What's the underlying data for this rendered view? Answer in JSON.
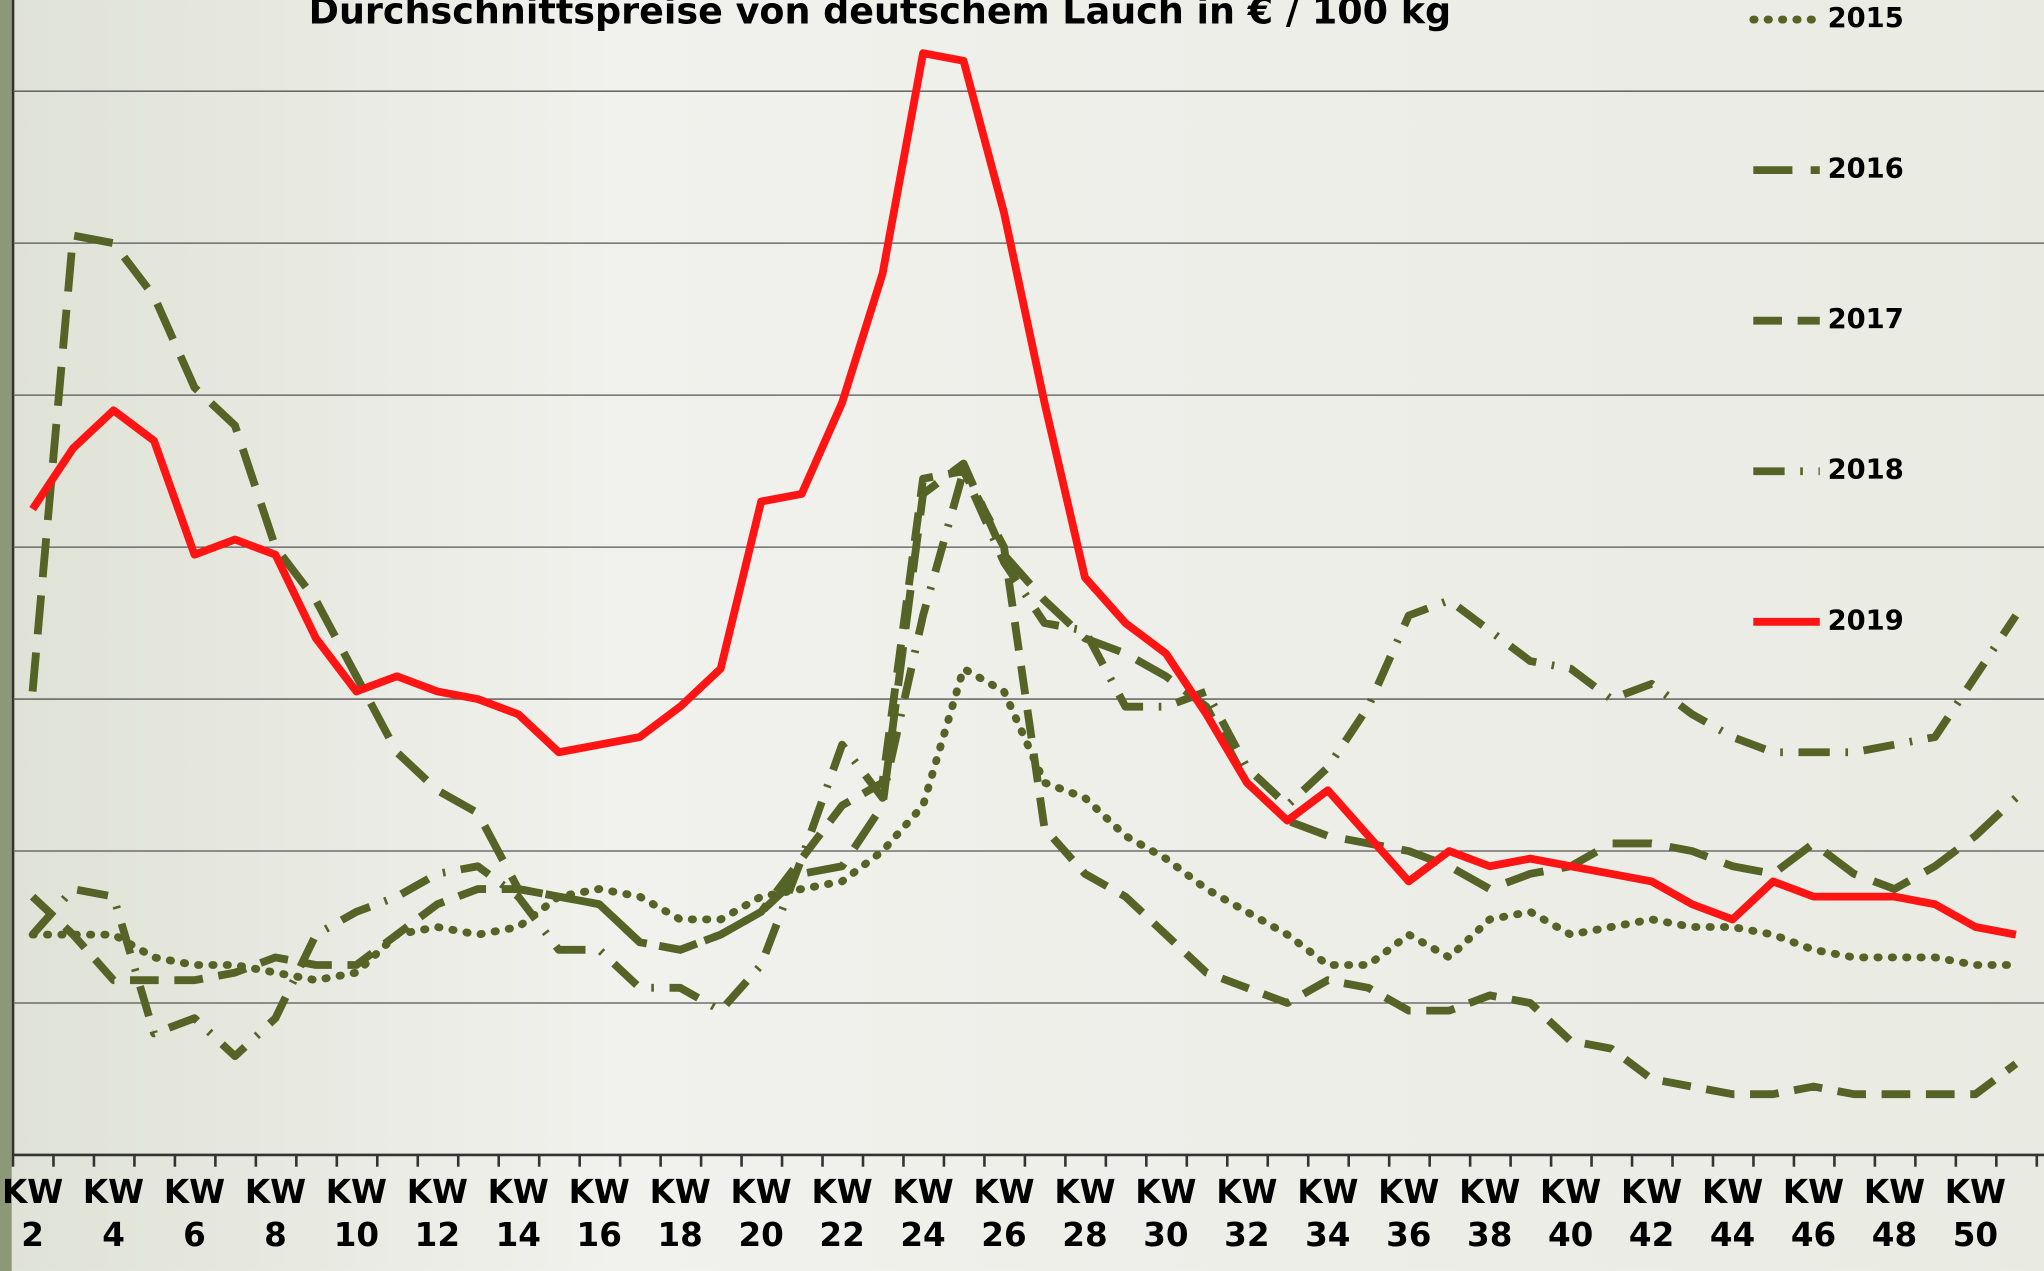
{
  "chart_data": {
    "type": "line",
    "title": "Durchschnittspreise von deutschem Lauch in € / 100 kg",
    "categories": [
      "KW 2",
      null,
      "KW 4",
      null,
      "KW 6",
      null,
      "KW 8",
      null,
      "KW 10",
      null,
      "KW 12",
      null,
      "KW 14",
      null,
      "KW 16",
      null,
      "KW 18",
      null,
      "KW 20",
      null,
      "KW 22",
      null,
      "KW 24",
      null,
      "KW 26",
      null,
      "KW 28",
      null,
      "KW 30",
      null,
      "KW 32",
      null,
      "KW 34",
      null,
      "KW 36",
      null,
      "KW 38",
      null,
      "KW 40",
      null,
      "KW 42",
      null,
      "KW 44",
      null,
      "KW 46",
      null,
      "KW 48",
      null,
      "KW 50",
      null
    ],
    "series": [
      {
        "name": "2015",
        "color": "#556326",
        "dash": "dotted",
        "values": [
          29,
          29,
          29,
          26,
          25,
          25,
          24,
          23,
          24,
          29,
          30,
          29,
          30,
          34,
          35,
          34,
          31,
          31,
          34,
          35,
          36,
          40,
          46,
          64,
          61,
          49,
          47,
          42,
          39,
          35,
          32,
          29,
          25,
          25,
          29,
          26,
          31,
          32,
          29,
          30,
          31,
          30,
          30,
          29,
          27,
          26,
          26,
          26,
          25,
          25
        ]
      },
      {
        "name": "2016",
        "color": "#556326",
        "dash": "long",
        "values": [
          61,
          121,
          120,
          113,
          101,
          96,
          80,
          73,
          63,
          53,
          48,
          45,
          35,
          34,
          33,
          28,
          27,
          29,
          32,
          37,
          38,
          46,
          87,
          91,
          79,
          73,
          68,
          66,
          63,
          59,
          49,
          44,
          42,
          41,
          40,
          38,
          35,
          37,
          38,
          41,
          41,
          40,
          38,
          37,
          41,
          37,
          35,
          38,
          42,
          47
        ]
      },
      {
        "name": "2017",
        "color": "#556326",
        "dash": "dashed",
        "values": [
          34,
          29,
          23,
          23,
          23,
          24,
          26,
          25,
          25,
          29,
          33,
          35,
          35,
          34,
          33,
          28,
          27,
          29,
          32,
          39,
          46,
          49,
          89,
          90,
          80,
          43,
          37,
          34,
          29,
          24,
          22,
          20,
          23,
          22,
          19,
          19,
          21,
          20,
          15,
          14,
          10,
          9,
          8,
          8,
          9,
          8,
          8,
          8,
          8,
          12
        ]
      },
      {
        "name": "2018",
        "color": "#556326",
        "dash": "dashdot",
        "values": [
          29,
          35,
          34,
          16,
          18,
          13,
          18,
          29,
          32,
          34,
          37,
          38,
          34,
          27,
          27,
          22,
          22,
          19,
          25,
          39,
          54,
          47,
          71,
          90,
          78,
          70,
          69,
          59,
          59,
          61,
          51,
          46,
          51,
          59,
          71,
          73,
          69,
          65,
          64,
          60,
          62,
          58,
          55,
          53,
          53,
          53,
          54,
          55,
          63,
          71
        ]
      },
      {
        "name": "2019",
        "color": "#ff1414",
        "dash": "solid",
        "values": [
          85,
          93,
          98,
          94,
          79,
          81,
          79,
          68,
          61,
          63,
          61,
          60,
          58,
          53,
          54,
          55,
          59,
          64,
          86,
          87,
          99,
          116,
          145,
          144,
          124,
          99,
          76,
          70,
          66,
          58,
          49,
          44,
          48,
          42,
          36,
          40,
          38,
          39,
          38,
          37,
          36,
          33,
          31,
          36,
          34,
          34,
          34,
          33,
          30,
          29
        ]
      }
    ],
    "ylim": [
      0,
      152
    ],
    "yticks": [
      20,
      40,
      60,
      80,
      100,
      120,
      140
    ],
    "grid": true,
    "legend": "right"
  }
}
